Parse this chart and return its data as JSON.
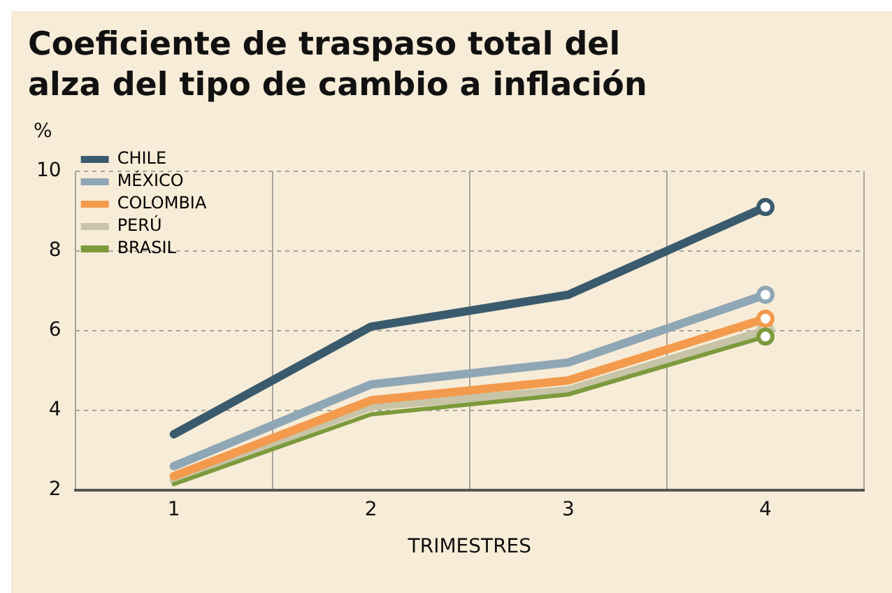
{
  "chart_data": {
    "type": "line",
    "title": "Coeficiente de traspaso total del alza del tipo de cambio a inflación",
    "ylabel": "%",
    "xlabel": "TRIMESTRES",
    "categories": [
      "1",
      "2",
      "3",
      "4"
    ],
    "series": [
      {
        "name": "CHILE",
        "color": "#3a5b6e",
        "values": [
          3.4,
          6.1,
          6.9,
          9.1
        ]
      },
      {
        "name": "MÉXICO",
        "color": "#8fa6b5",
        "values": [
          2.6,
          4.65,
          5.2,
          6.9
        ]
      },
      {
        "name": "COLOMBIA",
        "color": "#f39a4c",
        "values": [
          2.35,
          4.25,
          4.75,
          6.3
        ]
      },
      {
        "name": "PERÚ",
        "color": "#c7c4a8",
        "values": [
          2.25,
          4.1,
          4.5,
          6.0
        ]
      },
      {
        "name": "BRASIL",
        "color": "#7d9a3c",
        "values": [
          2.15,
          3.9,
          4.4,
          5.85
        ]
      }
    ],
    "ylim": [
      2,
      10
    ],
    "yticks": [
      2,
      4,
      6,
      8,
      10
    ],
    "grid": true,
    "legend": "top left",
    "line_style": "solid"
  }
}
